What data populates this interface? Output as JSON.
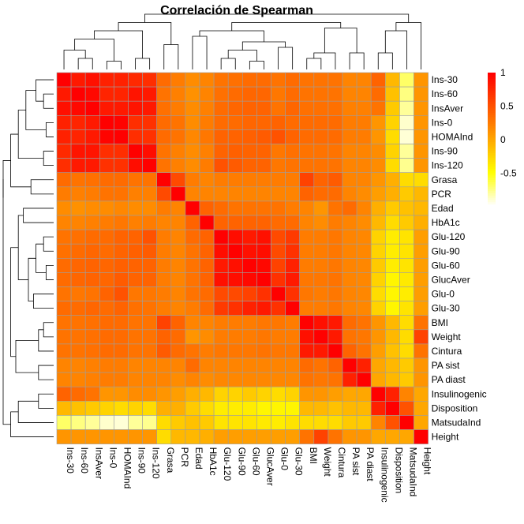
{
  "chart_data": {
    "type": "heatmap",
    "title": "Correlación de Spearman",
    "variables": [
      "Ins-30",
      "Ins-60",
      "InsAver",
      "Ins-0",
      "HOMAInd",
      "Ins-90",
      "Ins-120",
      "Grasa",
      "PCR",
      "Edad",
      "HbA1c",
      "Glu-120",
      "Glu-90",
      "Glu-60",
      "GlucAver",
      "Glu-0",
      "Glu-30",
      "BMI",
      "Weight",
      "Cintura",
      "PA sist",
      "PA diast",
      "Insulinogenic",
      "Disposition",
      "MatsudaInd",
      "Height"
    ],
    "values": [
      [
        1.0,
        0.85,
        0.9,
        0.8,
        0.8,
        0.75,
        0.72,
        0.35,
        0.25,
        0.15,
        0.2,
        0.3,
        0.32,
        0.35,
        0.35,
        0.3,
        0.35,
        0.3,
        0.3,
        0.3,
        0.2,
        0.2,
        0.4,
        -0.1,
        -0.7,
        0.1
      ],
      [
        0.85,
        1.0,
        0.95,
        0.78,
        0.78,
        0.88,
        0.85,
        0.3,
        0.22,
        0.12,
        0.2,
        0.32,
        0.35,
        0.38,
        0.38,
        0.28,
        0.35,
        0.3,
        0.3,
        0.3,
        0.2,
        0.2,
        0.35,
        -0.15,
        -0.75,
        0.1
      ],
      [
        0.9,
        0.95,
        1.0,
        0.85,
        0.85,
        0.88,
        0.85,
        0.32,
        0.25,
        0.15,
        0.22,
        0.35,
        0.38,
        0.4,
        0.4,
        0.3,
        0.38,
        0.32,
        0.32,
        0.32,
        0.22,
        0.22,
        0.3,
        -0.2,
        -0.8,
        0.1
      ],
      [
        0.8,
        0.78,
        0.85,
        1.0,
        0.98,
        0.72,
        0.7,
        0.35,
        0.3,
        0.15,
        0.25,
        0.35,
        0.35,
        0.38,
        0.38,
        0.4,
        0.35,
        0.35,
        0.35,
        0.35,
        0.25,
        0.25,
        0.1,
        -0.25,
        -0.9,
        0.1
      ],
      [
        0.8,
        0.78,
        0.85,
        0.98,
        1.0,
        0.72,
        0.7,
        0.35,
        0.3,
        0.18,
        0.28,
        0.4,
        0.4,
        0.42,
        0.45,
        0.5,
        0.4,
        0.35,
        0.35,
        0.35,
        0.25,
        0.25,
        0.1,
        -0.3,
        -0.92,
        0.1
      ],
      [
        0.75,
        0.88,
        0.88,
        0.72,
        0.72,
        1.0,
        0.92,
        0.3,
        0.22,
        0.15,
        0.22,
        0.4,
        0.42,
        0.4,
        0.4,
        0.28,
        0.32,
        0.3,
        0.3,
        0.3,
        0.2,
        0.2,
        0.15,
        -0.25,
        -0.8,
        0.1
      ],
      [
        0.72,
        0.85,
        0.85,
        0.7,
        0.7,
        0.92,
        1.0,
        0.3,
        0.22,
        0.15,
        0.25,
        0.5,
        0.45,
        0.4,
        0.4,
        0.28,
        0.3,
        0.3,
        0.3,
        0.3,
        0.2,
        0.2,
        0.15,
        -0.3,
        -0.78,
        0.1
      ],
      [
        0.35,
        0.3,
        0.32,
        0.35,
        0.35,
        0.3,
        0.3,
        1.0,
        0.55,
        0.25,
        0.2,
        0.25,
        0.25,
        0.25,
        0.25,
        0.25,
        0.25,
        0.6,
        0.4,
        0.45,
        0.2,
        0.2,
        0.1,
        -0.05,
        -0.3,
        -0.3
      ],
      [
        0.25,
        0.22,
        0.25,
        0.3,
        0.3,
        0.22,
        0.22,
        0.55,
        1.0,
        0.2,
        0.2,
        0.2,
        0.2,
        0.2,
        0.2,
        0.2,
        0.2,
        0.4,
        0.35,
        0.35,
        0.2,
        0.15,
        0.05,
        -0.05,
        -0.2,
        -0.1
      ],
      [
        0.15,
        0.12,
        0.15,
        0.15,
        0.18,
        0.15,
        0.15,
        0.25,
        0.2,
        1.0,
        0.4,
        0.35,
        0.3,
        0.3,
        0.3,
        0.3,
        0.25,
        0.2,
        0.1,
        0.3,
        0.35,
        0.2,
        -0.05,
        -0.2,
        -0.15,
        -0.1
      ],
      [
        0.2,
        0.2,
        0.22,
        0.25,
        0.28,
        0.22,
        0.25,
        0.2,
        0.2,
        0.4,
        1.0,
        0.4,
        0.4,
        0.4,
        0.4,
        0.35,
        0.35,
        0.2,
        0.15,
        0.25,
        0.2,
        0.15,
        -0.1,
        -0.3,
        -0.2,
        -0.05
      ],
      [
        0.3,
        0.32,
        0.35,
        0.35,
        0.4,
        0.4,
        0.5,
        0.25,
        0.2,
        0.35,
        0.4,
        1.0,
        0.92,
        0.85,
        0.9,
        0.55,
        0.65,
        0.25,
        0.25,
        0.28,
        0.2,
        0.18,
        -0.25,
        -0.4,
        -0.35,
        0.05
      ],
      [
        0.32,
        0.35,
        0.38,
        0.35,
        0.4,
        0.42,
        0.45,
        0.25,
        0.2,
        0.3,
        0.4,
        0.92,
        1.0,
        0.9,
        0.92,
        0.55,
        0.7,
        0.25,
        0.25,
        0.28,
        0.2,
        0.18,
        -0.25,
        -0.4,
        -0.35,
        0.05
      ],
      [
        0.35,
        0.38,
        0.4,
        0.38,
        0.42,
        0.4,
        0.4,
        0.25,
        0.2,
        0.3,
        0.4,
        0.85,
        0.9,
        1.0,
        0.95,
        0.6,
        0.8,
        0.25,
        0.25,
        0.28,
        0.2,
        0.18,
        -0.2,
        -0.4,
        -0.35,
        0.05
      ],
      [
        0.35,
        0.38,
        0.4,
        0.38,
        0.45,
        0.4,
        0.4,
        0.25,
        0.2,
        0.3,
        0.4,
        0.9,
        0.92,
        0.95,
        1.0,
        0.7,
        0.85,
        0.28,
        0.28,
        0.3,
        0.2,
        0.18,
        -0.25,
        -0.45,
        -0.38,
        0.05
      ],
      [
        0.3,
        0.28,
        0.3,
        0.4,
        0.5,
        0.28,
        0.28,
        0.25,
        0.2,
        0.3,
        0.35,
        0.55,
        0.55,
        0.6,
        0.7,
        1.0,
        0.7,
        0.28,
        0.25,
        0.28,
        0.2,
        0.18,
        -0.3,
        -0.45,
        -0.4,
        0.05
      ],
      [
        0.35,
        0.35,
        0.38,
        0.35,
        0.4,
        0.32,
        0.3,
        0.25,
        0.2,
        0.25,
        0.35,
        0.65,
        0.7,
        0.8,
        0.85,
        0.7,
        1.0,
        0.25,
        0.25,
        0.28,
        0.2,
        0.18,
        -0.25,
        -0.45,
        -0.35,
        0.05
      ],
      [
        0.3,
        0.3,
        0.32,
        0.35,
        0.35,
        0.3,
        0.3,
        0.6,
        0.4,
        0.2,
        0.2,
        0.25,
        0.25,
        0.25,
        0.28,
        0.28,
        0.25,
        1.0,
        0.9,
        0.85,
        0.35,
        0.3,
        0.1,
        -0.1,
        -0.3,
        0.3
      ],
      [
        0.3,
        0.3,
        0.32,
        0.35,
        0.35,
        0.3,
        0.3,
        0.4,
        0.35,
        0.1,
        0.15,
        0.25,
        0.25,
        0.25,
        0.28,
        0.25,
        0.25,
        0.9,
        1.0,
        0.85,
        0.3,
        0.28,
        0.1,
        -0.1,
        -0.3,
        0.6
      ],
      [
        0.3,
        0.3,
        0.32,
        0.35,
        0.35,
        0.3,
        0.3,
        0.45,
        0.35,
        0.3,
        0.25,
        0.28,
        0.28,
        0.28,
        0.3,
        0.28,
        0.28,
        0.85,
        0.85,
        1.0,
        0.4,
        0.3,
        0.05,
        -0.15,
        -0.3,
        0.3
      ],
      [
        0.2,
        0.2,
        0.22,
        0.25,
        0.25,
        0.2,
        0.2,
        0.2,
        0.2,
        0.35,
        0.2,
        0.2,
        0.2,
        0.2,
        0.2,
        0.2,
        0.2,
        0.35,
        0.3,
        0.4,
        1.0,
        0.8,
        0.0,
        -0.1,
        -0.2,
        0.1
      ],
      [
        0.2,
        0.2,
        0.22,
        0.25,
        0.25,
        0.2,
        0.2,
        0.2,
        0.15,
        0.2,
        0.15,
        0.18,
        0.18,
        0.18,
        0.18,
        0.18,
        0.18,
        0.3,
        0.28,
        0.3,
        0.8,
        1.0,
        0.0,
        -0.1,
        -0.2,
        0.1
      ],
      [
        0.4,
        0.35,
        0.3,
        0.1,
        0.1,
        0.15,
        0.15,
        0.1,
        0.05,
        -0.05,
        -0.1,
        -0.25,
        -0.25,
        -0.2,
        -0.25,
        -0.3,
        -0.25,
        0.1,
        0.1,
        0.05,
        0.0,
        0.0,
        1.0,
        0.8,
        0.2,
        0.0
      ],
      [
        -0.1,
        -0.15,
        -0.2,
        -0.25,
        -0.3,
        -0.25,
        -0.3,
        -0.05,
        -0.05,
        -0.2,
        -0.3,
        -0.4,
        -0.4,
        -0.4,
        -0.45,
        -0.45,
        -0.45,
        -0.1,
        -0.1,
        -0.15,
        -0.1,
        -0.1,
        0.8,
        1.0,
        0.5,
        0.0
      ],
      [
        -0.7,
        -0.75,
        -0.8,
        -0.9,
        -0.92,
        -0.8,
        -0.78,
        -0.3,
        -0.2,
        -0.15,
        -0.2,
        -0.35,
        -0.35,
        -0.35,
        -0.38,
        -0.4,
        -0.35,
        -0.3,
        -0.3,
        -0.3,
        -0.2,
        -0.2,
        0.2,
        0.5,
        1.0,
        0.0
      ],
      [
        0.1,
        0.1,
        0.1,
        0.1,
        0.1,
        0.1,
        0.1,
        -0.3,
        -0.1,
        -0.1,
        -0.05,
        0.05,
        0.05,
        0.05,
        0.05,
        0.05,
        0.05,
        0.3,
        0.6,
        0.3,
        0.1,
        0.1,
        0.0,
        0.0,
        0.0,
        1.0
      ]
    ],
    "legend": {
      "ticks": [
        1,
        0.5,
        0,
        -0.5
      ],
      "range": [
        -1,
        1
      ],
      "placement": "top-right",
      "colors": {
        "high": "#ff0000",
        "mid": "#ff8c00",
        "low": "#ffff00",
        "min": "#ffffff"
      }
    },
    "dendrogram": {
      "row": "left",
      "column": "top"
    },
    "grid": true
  }
}
